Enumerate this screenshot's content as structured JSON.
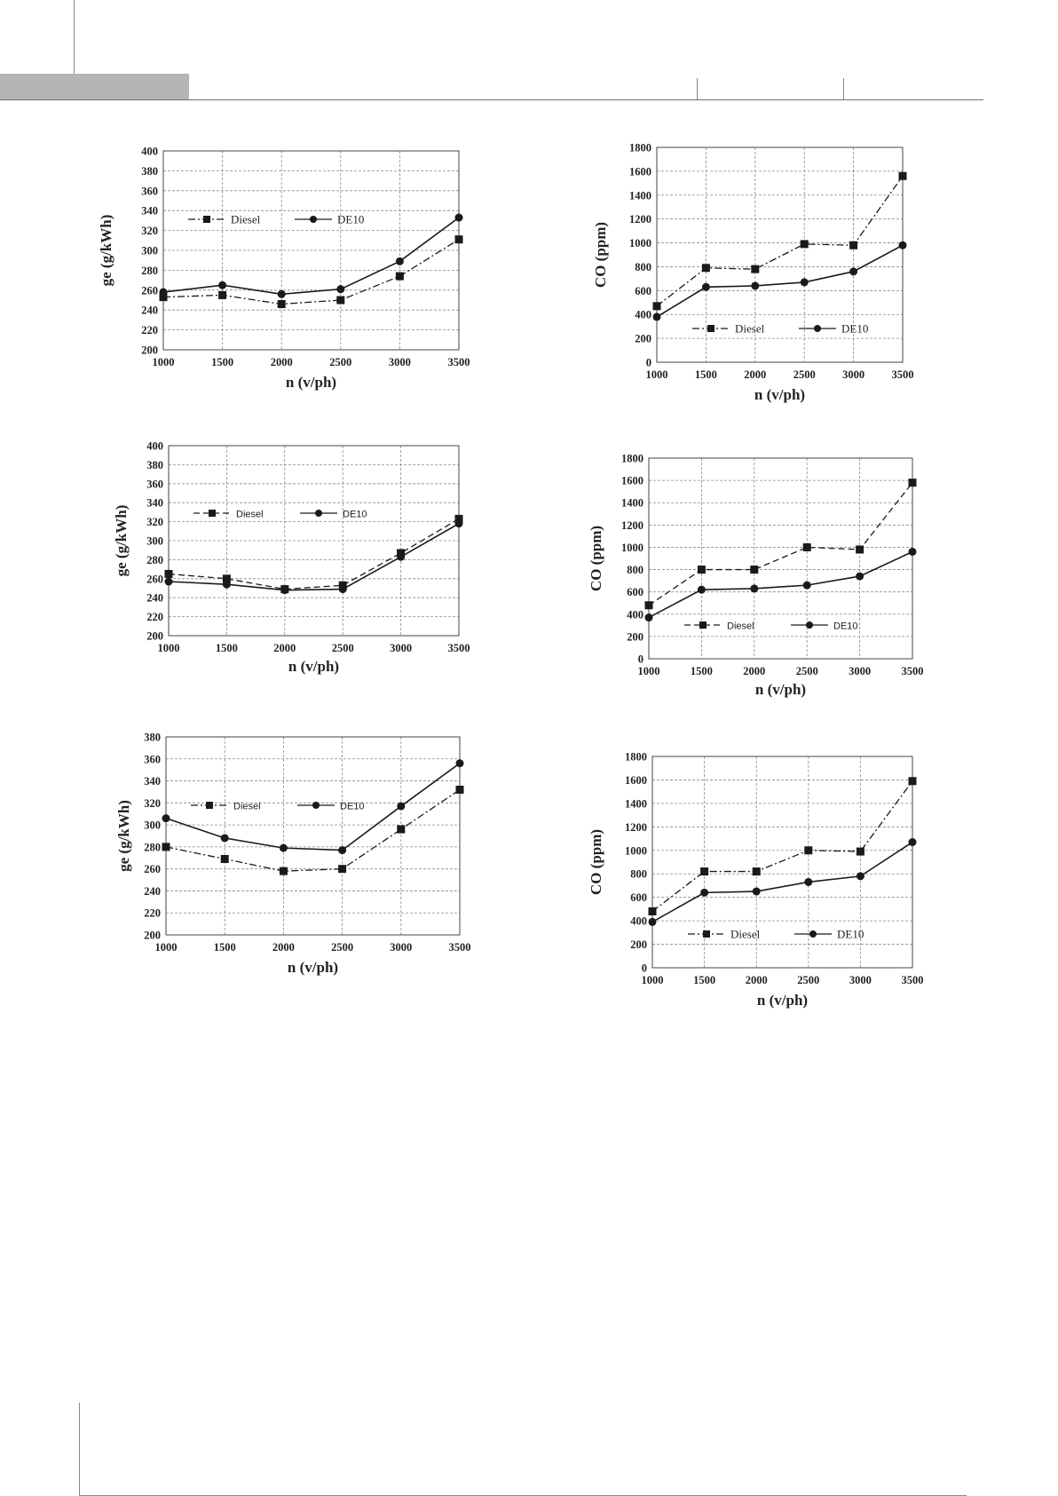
{
  "chart_data": [
    {
      "type": "line",
      "x": [
        1000,
        1500,
        2000,
        2500,
        3000,
        3500
      ],
      "xlabel": "n (v/ph)",
      "ylabel": "ge (g/kWh)",
      "ylim": [
        200,
        400
      ],
      "ytick_step": 20,
      "grid": true,
      "legend": "upper-left",
      "series": [
        {
          "name": "Diesel",
          "values": [
            253,
            255,
            246,
            250,
            274,
            311
          ],
          "marker": "square",
          "line": "dash-dot"
        },
        {
          "name": "DE10",
          "values": [
            258,
            265,
            256,
            261,
            289,
            333
          ],
          "marker": "circle",
          "line": "solid"
        }
      ]
    },
    {
      "type": "line",
      "x": [
        1000,
        1500,
        2000,
        2500,
        3000,
        3500
      ],
      "xlabel": "n (v/ph)",
      "ylabel": "CO (ppm)",
      "ylim": [
        0,
        1800
      ],
      "ytick_step": 200,
      "grid": true,
      "legend": "lower-center",
      "series": [
        {
          "name": "Diesel",
          "values": [
            470,
            790,
            780,
            990,
            980,
            1560
          ],
          "marker": "square",
          "line": "dash-dot"
        },
        {
          "name": "DE10",
          "values": [
            380,
            630,
            640,
            670,
            760,
            980
          ],
          "marker": "circle",
          "line": "solid"
        }
      ]
    },
    {
      "type": "line",
      "x": [
        1000,
        1500,
        2000,
        2500,
        3000,
        3500
      ],
      "xlabel": "n (v/ph)",
      "ylabel": "ge (g/kWh)",
      "ylim": [
        200,
        400
      ],
      "ytick_step": 20,
      "grid": true,
      "legend": "upper-left",
      "series": [
        {
          "name": "Diesel",
          "values": [
            265,
            260,
            249,
            253,
            287,
            323
          ],
          "marker": "square",
          "line": "dashed"
        },
        {
          "name": "DE10",
          "values": [
            257,
            254,
            248,
            249,
            283,
            318
          ],
          "marker": "circle",
          "line": "solid"
        }
      ]
    },
    {
      "type": "line",
      "x": [
        1000,
        1500,
        2000,
        2500,
        3000,
        3500
      ],
      "xlabel": "n (v/ph)",
      "ylabel": "CO (ppm)",
      "ylim": [
        0,
        1800
      ],
      "ytick_step": 200,
      "grid": true,
      "legend": "lower-center",
      "series": [
        {
          "name": "Diesel",
          "values": [
            480,
            800,
            800,
            1000,
            980,
            1580
          ],
          "marker": "square",
          "line": "dashed"
        },
        {
          "name": "DE10",
          "values": [
            370,
            620,
            630,
            660,
            740,
            960
          ],
          "marker": "circle",
          "line": "solid"
        }
      ]
    },
    {
      "type": "line",
      "x": [
        1000,
        1500,
        2000,
        2500,
        3000,
        3500
      ],
      "xlabel": "n (v/ph)",
      "ylabel": "ge (g/kWh)",
      "ylim": [
        200,
        380
      ],
      "ytick_step": 20,
      "grid": true,
      "legend": "upper-left",
      "series": [
        {
          "name": "Diesel",
          "values": [
            280,
            269,
            258,
            260,
            296,
            332
          ],
          "marker": "square",
          "line": "dash-dot"
        },
        {
          "name": "DE10",
          "values": [
            306,
            288,
            279,
            277,
            317,
            356
          ],
          "marker": "circle",
          "line": "solid"
        }
      ]
    },
    {
      "type": "line",
      "x": [
        1000,
        1500,
        2000,
        2500,
        3000,
        3500
      ],
      "xlabel": "n (v/ph)",
      "ylabel": "CO (ppm)",
      "ylim": [
        0,
        1800
      ],
      "ytick_step": 200,
      "grid": true,
      "legend": "lower-center",
      "series": [
        {
          "name": "Diesel",
          "values": [
            480,
            820,
            820,
            1000,
            990,
            1590
          ],
          "marker": "square",
          "line": "dash-dot"
        },
        {
          "name": "DE10",
          "values": [
            390,
            640,
            650,
            730,
            780,
            1070
          ],
          "marker": "circle",
          "line": "solid"
        }
      ]
    }
  ],
  "colors": {
    "line": "#1a1a1a",
    "grid": "#8a8a8a",
    "header_tab": "#b5b5b5",
    "header_rule": "#6f6f6f"
  }
}
